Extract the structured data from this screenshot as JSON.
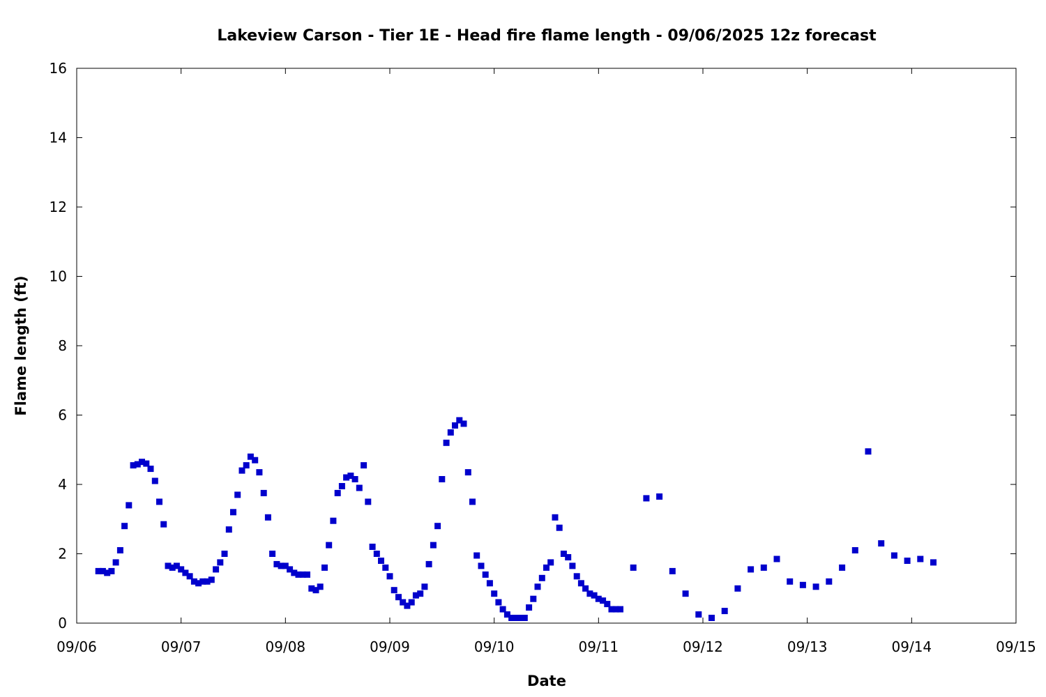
{
  "chart_data": {
    "type": "scatter",
    "title": "Lakeview Carson - Tier 1E - Head fire flame length - 09/06/2025 12z forecast",
    "xlabel": "Date",
    "ylabel": "Flame length (ft)",
    "xlim": [
      "09/06",
      "09/15"
    ],
    "ylim": [
      0,
      16
    ],
    "x_ticks": [
      "09/06",
      "09/07",
      "09/08",
      "09/09",
      "09/10",
      "09/11",
      "09/12",
      "09/13",
      "09/14",
      "09/15"
    ],
    "y_ticks": [
      "0",
      "2",
      "4",
      "6",
      "8",
      "10",
      "12",
      "14",
      "16"
    ],
    "grid": false,
    "legend": "none",
    "marker": "square",
    "series_color": "#0000cc",
    "points": [
      [
        "09/06 05:00",
        1.5
      ],
      [
        "09/06 06:00",
        1.5
      ],
      [
        "09/06 07:00",
        1.45
      ],
      [
        "09/06 08:00",
        1.5
      ],
      [
        "09/06 09:00",
        1.75
      ],
      [
        "09/06 10:00",
        2.1
      ],
      [
        "09/06 11:00",
        2.8
      ],
      [
        "09/06 12:00",
        3.4
      ],
      [
        "09/06 13:00",
        4.55
      ],
      [
        "09/06 14:00",
        4.58
      ],
      [
        "09/06 15:00",
        4.65
      ],
      [
        "09/06 16:00",
        4.6
      ],
      [
        "09/06 17:00",
        4.45
      ],
      [
        "09/06 18:00",
        4.1
      ],
      [
        "09/06 19:00",
        3.5
      ],
      [
        "09/06 20:00",
        2.85
      ],
      [
        "09/06 21:00",
        1.65
      ],
      [
        "09/06 22:00",
        1.6
      ],
      [
        "09/06 23:00",
        1.65
      ],
      [
        "09/07 00:00",
        1.55
      ],
      [
        "09/07 01:00",
        1.45
      ],
      [
        "09/07 02:00",
        1.35
      ],
      [
        "09/07 03:00",
        1.2
      ],
      [
        "09/07 04:00",
        1.15
      ],
      [
        "09/07 05:00",
        1.2
      ],
      [
        "09/07 06:00",
        1.2
      ],
      [
        "09/07 07:00",
        1.25
      ],
      [
        "09/07 08:00",
        1.55
      ],
      [
        "09/07 09:00",
        1.75
      ],
      [
        "09/07 10:00",
        2.0
      ],
      [
        "09/07 11:00",
        2.7
      ],
      [
        "09/07 12:00",
        3.2
      ],
      [
        "09/07 13:00",
        3.7
      ],
      [
        "09/07 14:00",
        4.4
      ],
      [
        "09/07 15:00",
        4.55
      ],
      [
        "09/07 16:00",
        4.8
      ],
      [
        "09/07 17:00",
        4.7
      ],
      [
        "09/07 18:00",
        4.35
      ],
      [
        "09/07 19:00",
        3.75
      ],
      [
        "09/07 20:00",
        3.05
      ],
      [
        "09/07 21:00",
        2.0
      ],
      [
        "09/07 22:00",
        1.7
      ],
      [
        "09/07 23:00",
        1.65
      ],
      [
        "09/08 00:00",
        1.65
      ],
      [
        "09/08 01:00",
        1.55
      ],
      [
        "09/08 02:00",
        1.45
      ],
      [
        "09/08 03:00",
        1.4
      ],
      [
        "09/08 04:00",
        1.4
      ],
      [
        "09/08 05:00",
        1.4
      ],
      [
        "09/08 06:00",
        1.0
      ],
      [
        "09/08 07:00",
        0.95
      ],
      [
        "09/08 08:00",
        1.05
      ],
      [
        "09/08 09:00",
        1.6
      ],
      [
        "09/08 10:00",
        2.25
      ],
      [
        "09/08 11:00",
        2.95
      ],
      [
        "09/08 12:00",
        3.75
      ],
      [
        "09/08 13:00",
        3.95
      ],
      [
        "09/08 14:00",
        4.2
      ],
      [
        "09/08 15:00",
        4.25
      ],
      [
        "09/08 16:00",
        4.15
      ],
      [
        "09/08 17:00",
        3.9
      ],
      [
        "09/08 18:00",
        4.55
      ],
      [
        "09/08 19:00",
        3.5
      ],
      [
        "09/08 20:00",
        2.2
      ],
      [
        "09/08 21:00",
        2.0
      ],
      [
        "09/08 22:00",
        1.8
      ],
      [
        "09/08 23:00",
        1.6
      ],
      [
        "09/09 00:00",
        1.35
      ],
      [
        "09/09 01:00",
        0.95
      ],
      [
        "09/09 02:00",
        0.75
      ],
      [
        "09/09 03:00",
        0.6
      ],
      [
        "09/09 04:00",
        0.5
      ],
      [
        "09/09 05:00",
        0.6
      ],
      [
        "09/09 06:00",
        0.8
      ],
      [
        "09/09 07:00",
        0.85
      ],
      [
        "09/09 08:00",
        1.05
      ],
      [
        "09/09 09:00",
        1.7
      ],
      [
        "09/09 10:00",
        2.25
      ],
      [
        "09/09 11:00",
        2.8
      ],
      [
        "09/09 12:00",
        4.15
      ],
      [
        "09/09 13:00",
        5.2
      ],
      [
        "09/09 14:00",
        5.5
      ],
      [
        "09/09 15:00",
        5.7
      ],
      [
        "09/09 16:00",
        5.85
      ],
      [
        "09/09 17:00",
        5.75
      ],
      [
        "09/09 18:00",
        4.35
      ],
      [
        "09/09 19:00",
        3.5
      ],
      [
        "09/09 20:00",
        1.95
      ],
      [
        "09/09 21:00",
        1.65
      ],
      [
        "09/09 22:00",
        1.4
      ],
      [
        "09/09 23:00",
        1.15
      ],
      [
        "09/10 00:00",
        0.85
      ],
      [
        "09/10 01:00",
        0.6
      ],
      [
        "09/10 02:00",
        0.4
      ],
      [
        "09/10 03:00",
        0.25
      ],
      [
        "09/10 04:00",
        0.15
      ],
      [
        "09/10 05:00",
        0.15
      ],
      [
        "09/10 06:00",
        0.15
      ],
      [
        "09/10 07:00",
        0.15
      ],
      [
        "09/10 08:00",
        0.45
      ],
      [
        "09/10 09:00",
        0.7
      ],
      [
        "09/10 10:00",
        1.05
      ],
      [
        "09/10 11:00",
        1.3
      ],
      [
        "09/10 12:00",
        1.6
      ],
      [
        "09/10 13:00",
        1.75
      ],
      [
        "09/10 14:00",
        3.05
      ],
      [
        "09/10 15:00",
        2.75
      ],
      [
        "09/10 16:00",
        2.0
      ],
      [
        "09/10 17:00",
        1.9
      ],
      [
        "09/10 18:00",
        1.65
      ],
      [
        "09/10 19:00",
        1.35
      ],
      [
        "09/10 20:00",
        1.15
      ],
      [
        "09/10 21:00",
        1.0
      ],
      [
        "09/10 22:00",
        0.85
      ],
      [
        "09/10 23:00",
        0.8
      ],
      [
        "09/11 00:00",
        0.7
      ],
      [
        "09/11 01:00",
        0.65
      ],
      [
        "09/11 02:00",
        0.55
      ],
      [
        "09/11 03:00",
        0.4
      ],
      [
        "09/11 04:00",
        0.4
      ],
      [
        "09/11 05:00",
        0.4
      ],
      [
        "09/11 08:00",
        1.6
      ],
      [
        "09/11 11:00",
        3.6
      ],
      [
        "09/11 14:00",
        3.65
      ],
      [
        "09/11 17:00",
        1.5
      ],
      [
        "09/11 20:00",
        0.85
      ],
      [
        "09/11 23:00",
        0.25
      ],
      [
        "09/12 02:00",
        0.15
      ],
      [
        "09/12 05:00",
        0.35
      ],
      [
        "09/12 08:00",
        1.0
      ],
      [
        "09/12 11:00",
        1.55
      ],
      [
        "09/12 14:00",
        1.6
      ],
      [
        "09/12 17:00",
        1.85
      ],
      [
        "09/12 20:00",
        1.2
      ],
      [
        "09/12 23:00",
        1.1
      ],
      [
        "09/13 02:00",
        1.05
      ],
      [
        "09/13 05:00",
        1.2
      ],
      [
        "09/13 08:00",
        1.6
      ],
      [
        "09/13 11:00",
        2.1
      ],
      [
        "09/13 14:00",
        4.95
      ],
      [
        "09/13 17:00",
        2.3
      ],
      [
        "09/13 20:00",
        1.95
      ],
      [
        "09/13 23:00",
        1.8
      ],
      [
        "09/14 02:00",
        1.85
      ],
      [
        "09/14 05:00",
        1.75
      ]
    ]
  }
}
